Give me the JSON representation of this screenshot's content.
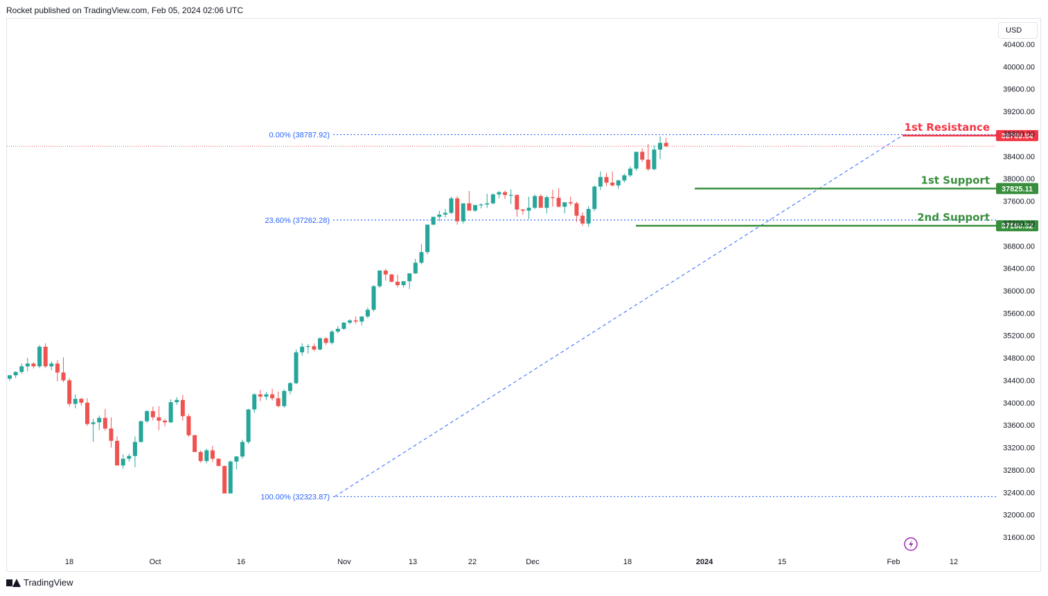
{
  "header": {
    "published": "Rocket published on TradingView.com, Feb 05, 2024 02:06 UTC"
  },
  "currency": "USD",
  "footer": {
    "brand": "TradingView"
  },
  "colors": {
    "up": "#26a69a",
    "down": "#ef5350",
    "fib": "#2962ff",
    "support": "#388e3c",
    "resistance": "#f23645",
    "axis_text": "#131722",
    "flash_icon": "#9c27b0"
  },
  "chart_data": {
    "type": "candlestick",
    "title": "",
    "y_axis": {
      "range": [
        31350,
        40650
      ],
      "ticks": [
        40400,
        40000,
        39600,
        39200,
        38800,
        38400,
        38000,
        37600,
        37200,
        36800,
        36400,
        36000,
        35600,
        35200,
        34800,
        34400,
        34000,
        33600,
        33200,
        32800,
        32400,
        32000,
        31600
      ],
      "tick_labels": [
        "40400.00",
        "40000.00",
        "39600.00",
        "39200.00",
        "38800.00",
        "38400.00",
        "38000.00",
        "37600.00",
        "37200.00",
        "36800.00",
        "36400.00",
        "36000.00",
        "35600.00",
        "35200.00",
        "34800.00",
        "34400.00",
        "34000.00",
        "33600.00",
        "33200.00",
        "32800.00",
        "32400.00",
        "32000.00",
        "31600.00"
      ]
    },
    "x_axis": {
      "labels": [
        "18",
        "Oct",
        "16",
        "Nov",
        "13",
        "22",
        "Dec",
        "18",
        "2024",
        "15",
        "Feb",
        "12"
      ],
      "bold": [
        "2024"
      ]
    },
    "candles": [
      [
        34430,
        34500,
        34390,
        34490
      ],
      [
        34490,
        34560,
        34440,
        34550
      ],
      [
        34550,
        34700,
        34520,
        34650
      ],
      [
        34650,
        34800,
        34560,
        34700
      ],
      [
        34700,
        34720,
        34610,
        34650
      ],
      [
        34650,
        35030,
        34620,
        35000
      ],
      [
        35000,
        35060,
        34620,
        34650
      ],
      [
        34650,
        34740,
        34580,
        34700
      ],
      [
        34700,
        34760,
        34380,
        34540
      ],
      [
        34540,
        34810,
        34370,
        34400
      ],
      [
        34400,
        34440,
        33930,
        33980
      ],
      [
        33980,
        34150,
        33900,
        34070
      ],
      [
        34070,
        34090,
        33950,
        34000
      ],
      [
        34000,
        34080,
        33590,
        33620
      ],
      [
        33620,
        33710,
        33300,
        33650
      ],
      [
        33650,
        33770,
        33510,
        33730
      ],
      [
        33730,
        33890,
        33500,
        33540
      ],
      [
        33540,
        33740,
        33200,
        33320
      ],
      [
        33320,
        33400,
        32900,
        32880
      ],
      [
        32880,
        33080,
        32820,
        33000
      ],
      [
        33000,
        33090,
        32950,
        33050
      ],
      [
        33050,
        33400,
        32850,
        33300
      ],
      [
        33300,
        33680,
        33290,
        33670
      ],
      [
        33670,
        33870,
        33640,
        33850
      ],
      [
        33850,
        33930,
        33690,
        33740
      ],
      [
        33740,
        33940,
        33510,
        33680
      ],
      [
        33680,
        33710,
        33580,
        33650
      ],
      [
        33650,
        34060,
        33640,
        34010
      ],
      [
        34010,
        34100,
        33960,
        34050
      ],
      [
        34050,
        34140,
        33680,
        33760
      ],
      [
        33760,
        33800,
        33390,
        33420
      ],
      [
        33420,
        33430,
        33140,
        33120
      ],
      [
        33120,
        33150,
        32930,
        32960
      ],
      [
        32960,
        33180,
        32920,
        33150
      ],
      [
        33150,
        33230,
        32940,
        33000
      ],
      [
        33000,
        33010,
        32900,
        32870
      ],
      [
        32870,
        32880,
        32390,
        32380
      ],
      [
        32380,
        32970,
        32390,
        32950
      ],
      [
        32950,
        33050,
        32810,
        33040
      ],
      [
        33040,
        33340,
        33000,
        33300
      ],
      [
        33300,
        33890,
        33270,
        33880
      ],
      [
        33880,
        34170,
        33820,
        34150
      ],
      [
        34150,
        34230,
        34030,
        34110
      ],
      [
        34110,
        34190,
        34050,
        34150
      ],
      [
        34150,
        34250,
        34040,
        34080
      ],
      [
        34080,
        34200,
        33920,
        33940
      ],
      [
        33940,
        34240,
        33910,
        34210
      ],
      [
        34210,
        34370,
        34150,
        34350
      ],
      [
        34350,
        34950,
        34330,
        34900
      ],
      [
        34900,
        35060,
        34840,
        35000
      ],
      [
        35000,
        35050,
        34880,
        35010
      ],
      [
        35010,
        35060,
        34920,
        34950
      ],
      [
        34950,
        35170,
        34940,
        35150
      ],
      [
        35150,
        35170,
        35030,
        35070
      ],
      [
        35070,
        35300,
        35040,
        35270
      ],
      [
        35270,
        35370,
        35240,
        35320
      ],
      [
        35320,
        35440,
        35300,
        35430
      ],
      [
        35430,
        35490,
        35400,
        35470
      ],
      [
        35470,
        35540,
        35410,
        35450
      ],
      [
        35450,
        35540,
        35380,
        35540
      ],
      [
        35540,
        35700,
        35510,
        35660
      ],
      [
        35660,
        36100,
        35630,
        36080
      ],
      [
        36080,
        36370,
        36050,
        36360
      ],
      [
        36360,
        36390,
        36180,
        36290
      ],
      [
        36290,
        36300,
        36150,
        36160
      ],
      [
        36160,
        36290,
        36060,
        36100
      ],
      [
        36100,
        36170,
        36060,
        36170
      ],
      [
        36170,
        36250,
        36030,
        36310
      ],
      [
        36310,
        36570,
        36300,
        36500
      ],
      [
        36500,
        36830,
        36470,
        36690
      ],
      [
        36690,
        37140,
        36650,
        37180
      ],
      [
        37180,
        37320,
        37170,
        37320
      ],
      [
        37320,
        37430,
        37240,
        37360
      ],
      [
        37360,
        37460,
        37310,
        37390
      ],
      [
        37390,
        37680,
        37370,
        37650
      ],
      [
        37650,
        37690,
        37180,
        37240
      ],
      [
        37240,
        37550,
        37200,
        37560
      ],
      [
        37560,
        37780,
        37510,
        37430
      ],
      [
        37430,
        37520,
        37410,
        37530
      ],
      [
        37530,
        37560,
        37470,
        37540
      ],
      [
        37540,
        37730,
        37480,
        37560
      ],
      [
        37560,
        37740,
        37540,
        37720
      ],
      [
        37720,
        37780,
        37650,
        37760
      ],
      [
        37760,
        37790,
        37640,
        37710
      ],
      [
        37710,
        37810,
        37550,
        37710
      ],
      [
        37710,
        37720,
        37320,
        37450
      ],
      [
        37450,
        37460,
        37360,
        37430
      ],
      [
        37430,
        37680,
        37280,
        37480
      ],
      [
        37480,
        37720,
        37460,
        37690
      ],
      [
        37690,
        37720,
        37510,
        37480
      ],
      [
        37480,
        37700,
        37380,
        37670
      ],
      [
        37670,
        37800,
        37500,
        37660
      ],
      [
        37660,
        37830,
        37490,
        37500
      ],
      [
        37500,
        37570,
        37380,
        37580
      ],
      [
        37580,
        37680,
        37520,
        37560
      ],
      [
        37560,
        37590,
        37230,
        37340
      ],
      [
        37340,
        37400,
        37160,
        37200
      ],
      [
        37200,
        37510,
        37140,
        37460
      ],
      [
        37460,
        37880,
        37420,
        37860
      ],
      [
        37860,
        38130,
        37800,
        38030
      ],
      [
        38030,
        38100,
        37870,
        37930
      ],
      [
        37930,
        38130,
        37860,
        37880
      ],
      [
        37880,
        37980,
        37820,
        37970
      ],
      [
        37970,
        38090,
        37930,
        38060
      ],
      [
        38060,
        38220,
        38030,
        38180
      ],
      [
        38180,
        38480,
        38140,
        38480
      ],
      [
        38480,
        38540,
        38300,
        38340
      ],
      [
        38340,
        38620,
        38140,
        38170
      ],
      [
        38170,
        38590,
        38150,
        38520
      ],
      [
        38520,
        38760,
        38350,
        38640
      ],
      [
        38640,
        38730,
        38560,
        38580
      ]
    ],
    "fibonacci": [
      {
        "label": "0.00% (38787.92)",
        "value": 38787.92
      },
      {
        "label": "23.60% (37262.28)",
        "value": 37262.28
      },
      {
        "label": "100.00% (32323.87)",
        "value": 32323.87
      }
    ],
    "levels": [
      {
        "name": "1st Resistance",
        "value": 38769.84,
        "price_label": "38769.84",
        "kind": "resistance"
      },
      {
        "name": "1st Support",
        "value": 37825.11,
        "price_label": "37825.11",
        "kind": "support"
      },
      {
        "name": "2nd Support",
        "value": 37160.32,
        "price_label": "37160.32",
        "kind": "support"
      }
    ],
    "trendline": {
      "from_value": 32323.87,
      "to_value": 38787.92,
      "style": "dashed"
    },
    "last_price": 38580,
    "grid": false,
    "legend": "none"
  }
}
